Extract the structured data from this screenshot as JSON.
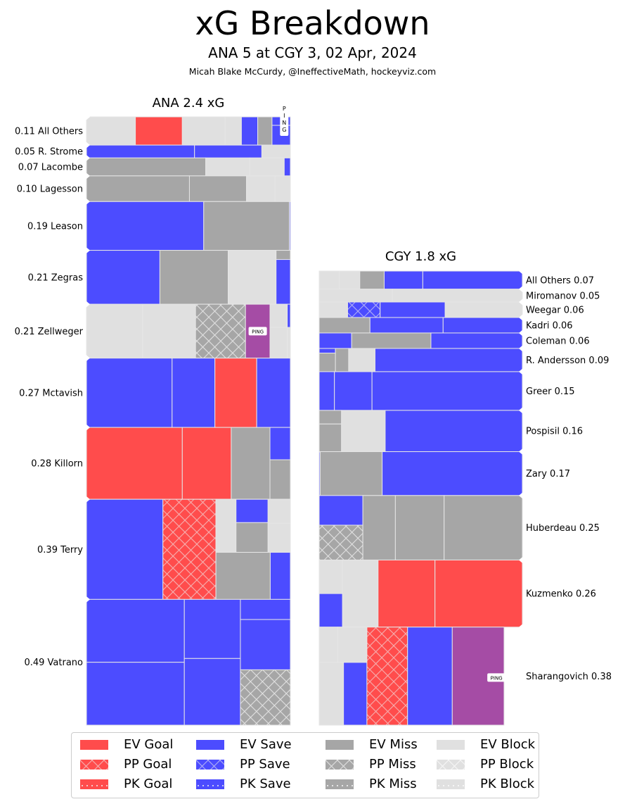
{
  "header": {
    "title": "xG Breakdown",
    "subtitle": "ANA 5 at CGY 3, 02 Apr, 2024",
    "credit": "Micah Blake McCurdy, @IneffectiveMath, hockeyviz.com"
  },
  "colors": {
    "goal": "#ff4c4c",
    "save": "#4c4cff",
    "miss": "#a6a6a6",
    "block": "#e0e0e0",
    "penalty": "#a54ca5",
    "divider": "#e6e6e6"
  },
  "chart_data": {
    "type": "treemap",
    "title": "xG Breakdown",
    "subtitle": "ANA 5 at CGY 3, 02 Apr, 2024",
    "teams": [
      {
        "team": "ANA",
        "title": "ANA 2.4 xG",
        "total_xg": 2.4,
        "label_side": "left",
        "players": [
          {
            "name": "All Others",
            "xg": 0.11,
            "label": "0.11 All Others",
            "shots": [
              {
                "type": "EV Block",
                "frac": 0.24,
                "rows": [
                  1
                ]
              },
              {
                "type": "EV Goal",
                "frac": 0.23,
                "rows": [
                  1
                ]
              },
              {
                "type": "EV Block",
                "frac": 0.21,
                "rows": [
                  1
                ]
              },
              {
                "type": "EV Block",
                "frac": 0.08,
                "rows": [
                  1
                ]
              },
              {
                "type": "EV Save",
                "frac": 0.08,
                "rows": [
                  1
                ]
              },
              {
                "type": "EV Miss",
                "frac": 0.07,
                "rows": [
                  1
                ]
              },
              {
                "type": "EV Save",
                "frac": 0.09,
                "rows": [
                  0.3,
                  0.7
                ]
              }
            ],
            "annotation": "PING"
          },
          {
            "name": "R. Strome",
            "xg": 0.05,
            "label": "0.05 R. Strome",
            "shots": [
              {
                "type": "EV Save",
                "frac": 0.53,
                "rows": [
                  1
                ]
              },
              {
                "type": "EV Save",
                "frac": 0.33,
                "rows": [
                  1
                ]
              },
              {
                "type": "EV Block",
                "frac": 0.14,
                "rows": [
                  1
                ]
              }
            ]
          },
          {
            "name": "Lacombe",
            "xg": 0.07,
            "label": "0.07 Lacombe",
            "shots": [
              {
                "type": "EV Miss",
                "frac": 0.585,
                "rows": [
                  1
                ]
              },
              {
                "type": "EV Block",
                "frac": 0.215,
                "rows": [
                  1
                ]
              },
              {
                "type": "EV Block",
                "frac": 0.17,
                "rows": [
                  1
                ]
              },
              {
                "type": "EV Save",
                "frac": 0.03,
                "rows": [
                  1
                ]
              }
            ]
          },
          {
            "name": "Lagesson",
            "xg": 0.1,
            "label": "0.10 Lagesson",
            "shots": [
              {
                "type": "EV Miss",
                "frac": 0.505,
                "rows": [
                  1
                ]
              },
              {
                "type": "EV Miss",
                "frac": 0.28,
                "rows": [
                  1
                ]
              },
              {
                "type": "EV Block",
                "frac": 0.14,
                "rows": [
                  1
                ]
              },
              {
                "type": "EV Block",
                "frac": 0.075,
                "rows": [
                  1
                ]
              }
            ]
          },
          {
            "name": "Leason",
            "xg": 0.19,
            "label": "0.19 Leason",
            "shots": [
              {
                "type": "EV Save",
                "frac": 0.575,
                "rows": [
                  1
                ]
              },
              {
                "type": "EV Miss",
                "frac": 0.42,
                "rows": [
                  1
                ]
              },
              {
                "type": "EV Save",
                "frac": 0.005,
                "rows": [
                  1
                ]
              }
            ]
          },
          {
            "name": "Zegras",
            "xg": 0.21,
            "label": "0.21 Zegras",
            "shots": [
              {
                "type": "EV Save",
                "frac": 0.36,
                "rows": [
                  1
                ]
              },
              {
                "type": "EV Miss",
                "frac": 0.335,
                "rows": [
                  1
                ]
              },
              {
                "type": "EV Block",
                "frac": 0.235,
                "rows": [
                  1
                ]
              },
              {
                "type": "EV Save",
                "frac": 0.07,
                "rows": [
                  0.17,
                  0.83
                ],
                "types": [
                  "EV Miss",
                  "EV Save"
                ]
              }
            ]
          },
          {
            "name": "Zellweger",
            "xg": 0.21,
            "label": "0.21 Zellweger",
            "shots": [
              {
                "type": "EV Block",
                "frac": 0.275,
                "rows": [
                  1
                ]
              },
              {
                "type": "EV Block",
                "frac": 0.26,
                "rows": [
                  1
                ]
              },
              {
                "type": "PP Miss",
                "frac": 0.245,
                "rows": [
                  1
                ]
              },
              {
                "type": "Penalty",
                "frac": 0.12,
                "rows": [
                  1
                ],
                "annotation": "PING"
              },
              {
                "type": "EV Block",
                "frac": 0.085,
                "rows": [
                  0.43,
                  0.57
                ]
              },
              {
                "type": "EV Save",
                "frac": 0.015,
                "rows": [
                  0.43,
                  0.57
                ],
                "types": [
                  "EV Save",
                  "EV Block"
                ]
              }
            ]
          },
          {
            "name": "Mctavish",
            "xg": 0.27,
            "label": "0.27 Mctavish",
            "shots": [
              {
                "type": "EV Save",
                "frac": 0.42,
                "rows": [
                  1
                ]
              },
              {
                "type": "EV Save",
                "frac": 0.21,
                "rows": [
                  1
                ]
              },
              {
                "type": "EV Goal",
                "frac": 0.205,
                "rows": [
                  1
                ]
              },
              {
                "type": "EV Save",
                "frac": 0.165,
                "rows": [
                  1
                ]
              }
            ]
          },
          {
            "name": "Killorn",
            "xg": 0.28,
            "label": "0.28 Killorn",
            "shots": [
              {
                "type": "EV Goal",
                "frac": 0.47,
                "rows": [
                  1
                ]
              },
              {
                "type": "EV Goal",
                "frac": 0.24,
                "rows": [
                  1
                ]
              },
              {
                "type": "EV Miss",
                "frac": 0.19,
                "rows": [
                  1
                ]
              },
              {
                "type": "EV Save",
                "frac": 0.1,
                "rows": [
                  0.45,
                  0.55
                ],
                "types": [
                  "EV Save",
                  "EV Miss"
                ]
              }
            ]
          },
          {
            "name": "Terry",
            "xg": 0.39,
            "label": "0.39 Terry",
            "shots": [
              {
                "type": "EV Save",
                "frac": 0.375,
                "rows": [
                  1
                ]
              },
              {
                "type": "PP Goal",
                "frac": 0.26,
                "rows": [
                  1
                ]
              },
              {
                "type": "EV Block",
                "frac": 0.365,
                "rows": [
                  1
                ]
              }
            ]
          },
          {
            "name": "Vatrano",
            "xg": 0.49,
            "label": "0.49 Vatrano",
            "shots": [
              {
                "type": "EV Save",
                "frac": 0.48,
                "rows": [
                  0.5,
                  0.5
                ]
              },
              {
                "type": "EV Save",
                "frac": 0.275,
                "rows": [
                  0.47,
                  0.53
                ]
              },
              {
                "type": "EV Save",
                "frac": 0.245,
                "rows": [
                  0.16,
                  0.4,
                  0.44
                ],
                "types": [
                  "EV Save",
                  "EV Save",
                  "PP Miss"
                ]
              }
            ]
          }
        ]
      },
      {
        "team": "CGY",
        "title": "CGY 1.8 xG",
        "total_xg": 1.8,
        "label_side": "right",
        "players": [
          {
            "name": "All Others",
            "xg": 0.07,
            "label": "All Others 0.07"
          },
          {
            "name": "Miromanov",
            "xg": 0.05,
            "label": "Miromanov 0.05"
          },
          {
            "name": "Weegar",
            "xg": 0.06,
            "label": "Weegar 0.06"
          },
          {
            "name": "Kadri",
            "xg": 0.06,
            "label": "Kadri 0.06"
          },
          {
            "name": "Coleman",
            "xg": 0.06,
            "label": "Coleman 0.06"
          },
          {
            "name": "R. Andersson",
            "xg": 0.09,
            "label": "R. Andersson 0.09"
          },
          {
            "name": "Greer",
            "xg": 0.15,
            "label": "Greer 0.15"
          },
          {
            "name": "Pospisil",
            "xg": 0.16,
            "label": "Pospisil 0.16"
          },
          {
            "name": "Zary",
            "xg": 0.17,
            "label": "Zary 0.17"
          },
          {
            "name": "Huberdeau",
            "xg": 0.25,
            "label": "Huberdeau 0.25"
          },
          {
            "name": "Kuzmenko",
            "xg": 0.26,
            "label": "Kuzmenko 0.26"
          },
          {
            "name": "Sharangovich",
            "xg": 0.38,
            "label": "Sharangovich 0.38",
            "annotation": "PING"
          }
        ]
      }
    ],
    "legend": {
      "placement": "bottom",
      "entries": [
        {
          "label": "EV Goal",
          "color": "#ff4c4c",
          "pattern": "solid"
        },
        {
          "label": "EV Save",
          "color": "#4c4cff",
          "pattern": "solid"
        },
        {
          "label": "EV Miss",
          "color": "#a6a6a6",
          "pattern": "solid"
        },
        {
          "label": "EV Block",
          "color": "#e0e0e0",
          "pattern": "solid"
        },
        {
          "label": "PP Goal",
          "color": "#ff4c4c",
          "pattern": "crosshatch"
        },
        {
          "label": "PP Save",
          "color": "#4c4cff",
          "pattern": "crosshatch"
        },
        {
          "label": "PP Miss",
          "color": "#a6a6a6",
          "pattern": "crosshatch"
        },
        {
          "label": "PP Block",
          "color": "#e0e0e0",
          "pattern": "crosshatch"
        },
        {
          "label": "PK Goal",
          "color": "#ff4c4c",
          "pattern": "dots"
        },
        {
          "label": "PK Save",
          "color": "#4c4cff",
          "pattern": "dots"
        },
        {
          "label": "PK Miss",
          "color": "#a6a6a6",
          "pattern": "dots"
        },
        {
          "label": "PK Block",
          "color": "#e0e0e0",
          "pattern": "dots"
        }
      ]
    }
  }
}
